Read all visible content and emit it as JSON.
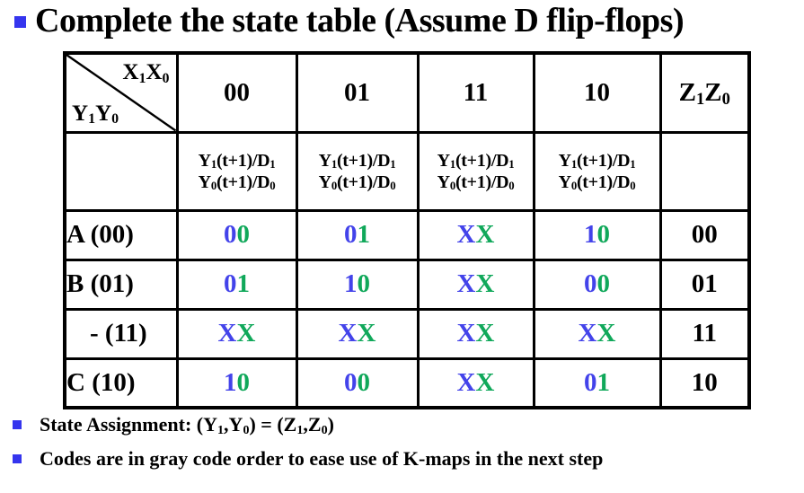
{
  "title": {
    "text": "Complete the state table (Assume D flip-flops)"
  },
  "colors": {
    "digit_blue": "#4343ea",
    "digit_green": "#10a85a",
    "bullet_blue": "#3535ee",
    "border_black": "#000000"
  },
  "table": {
    "corner": {
      "top_right": "X_1X_0",
      "bottom_left": "Y_1Y_0"
    },
    "input_headers": [
      "00",
      "01",
      "11",
      "10"
    ],
    "output_header": "Z_1Z_0",
    "cell_definition": {
      "line1": "Y_1(t+1)/D_1",
      "line2": "Y_0(t+1)/D_0"
    },
    "rows": [
      {
        "label": "A (00)",
        "cells": [
          {
            "d1": "0",
            "d0": "0"
          },
          {
            "d1": "0",
            "d0": "1"
          },
          {
            "d1": "X",
            "d0": "X"
          },
          {
            "d1": "1",
            "d0": "0"
          }
        ],
        "output": "00"
      },
      {
        "label": "B (01)",
        "cells": [
          {
            "d1": "0",
            "d0": "1"
          },
          {
            "d1": "1",
            "d0": "0"
          },
          {
            "d1": "X",
            "d0": "X"
          },
          {
            "d1": "0",
            "d0": "0"
          }
        ],
        "output": "01"
      },
      {
        "label": "- (11)",
        "cells": [
          {
            "d1": "X",
            "d0": "X"
          },
          {
            "d1": "X",
            "d0": "X"
          },
          {
            "d1": "X",
            "d0": "X"
          },
          {
            "d1": "X",
            "d0": "X"
          }
        ],
        "output": "11"
      },
      {
        "label": "C (10)",
        "cells": [
          {
            "d1": "1",
            "d0": "0"
          },
          {
            "d1": "0",
            "d0": "0"
          },
          {
            "d1": "X",
            "d0": "X"
          },
          {
            "d1": "0",
            "d0": "1"
          }
        ],
        "output": "10"
      }
    ]
  },
  "notes": [
    {
      "text": "State Assignment: (Y_1,Y_0) = (Z_1,Z_0)"
    },
    {
      "text": "Codes are in gray code order to ease use of K-maps in the next step"
    }
  ]
}
